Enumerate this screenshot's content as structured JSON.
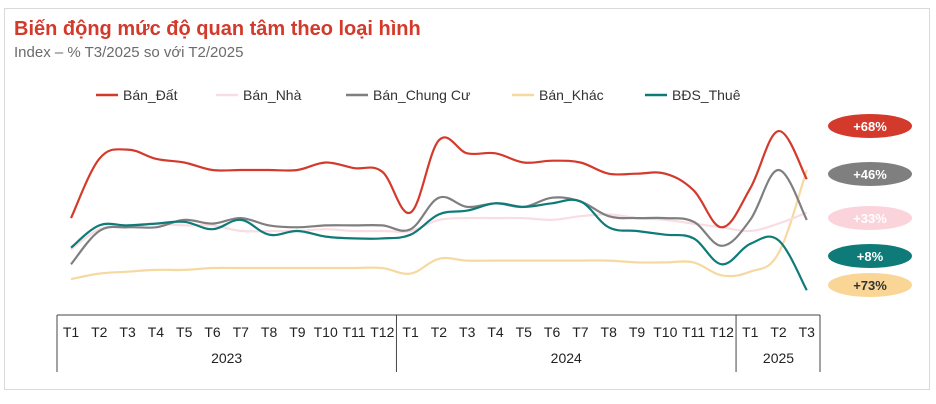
{
  "header": {
    "title": "Biến động mức độ quan tâm theo loại hình",
    "subtitle": "Index – % T3/2025 so với T2/2025"
  },
  "chart_data": {
    "type": "line",
    "categories": [
      "T1",
      "T2",
      "T3",
      "T4",
      "T5",
      "T6",
      "T7",
      "T8",
      "T9",
      "T10",
      "T11",
      "T12",
      "T1",
      "T2",
      "T3",
      "T4",
      "T5",
      "T6",
      "T7",
      "T8",
      "T9",
      "T10",
      "T11",
      "T12",
      "T1",
      "T2",
      "T3"
    ],
    "years": [
      {
        "label": "2023",
        "from": 0,
        "to": 11
      },
      {
        "label": "2024",
        "from": 12,
        "to": 23
      },
      {
        "label": "2025",
        "from": 24,
        "to": 26
      }
    ],
    "legend_position": "top",
    "grid": false,
    "ylim": [
      0,
      100
    ],
    "series": [
      {
        "name": "Bán_Đất",
        "color": "#d33a2c",
        "badge": "+68%",
        "badge_bg": "#d33a2c",
        "badge_fg": "#ffffff",
        "values": [
          47,
          79,
          84,
          79,
          77,
          73,
          73,
          73,
          73,
          77,
          74,
          72,
          50,
          89,
          82,
          82,
          77,
          78,
          77,
          71,
          71,
          71,
          62,
          42,
          63,
          94,
          68
        ]
      },
      {
        "name": "Bán_Nhà",
        "color": "#f9dde3",
        "badge": "+33%",
        "badge_bg": "#fbd3da",
        "badge_fg": "#ffffff",
        "values": [
          30,
          41,
          43,
          44,
          43,
          43,
          40,
          40,
          40,
          41,
          40,
          40,
          40,
          46,
          47,
          47,
          47,
          46,
          48,
          49,
          47,
          46,
          44,
          42,
          40,
          44,
          50
        ]
      },
      {
        "name": "Bán_Chung Cư",
        "color": "#7f7f7f",
        "badge": "+46%",
        "badge_bg": "#7f7f7f",
        "badge_fg": "#ffffff",
        "values": [
          22,
          40,
          42,
          42,
          46,
          44,
          47,
          43,
          42,
          43,
          43,
          43,
          41,
          58,
          53,
          55,
          53,
          58,
          56,
          48,
          47,
          47,
          45,
          32,
          46,
          73,
          46
        ]
      },
      {
        "name": "Bán_Khác",
        "color": "#f6d9a0",
        "badge": "+73%",
        "badge_bg": "#f9d695",
        "badge_fg": "#333333",
        "values": [
          14,
          17,
          18,
          19,
          19,
          20,
          20,
          20,
          20,
          20,
          20,
          20,
          17,
          25,
          24,
          24,
          24,
          24,
          24,
          24,
          23,
          23,
          23,
          16,
          18,
          28,
          73
        ]
      },
      {
        "name": "BĐS_Thuê",
        "color": "#0e7b78",
        "badge": "+8%",
        "badge_bg": "#0e7b78",
        "badge_fg": "#ffffff",
        "values": [
          31,
          43,
          43,
          44,
          45,
          41,
          46,
          38,
          40,
          37,
          36,
          36,
          38,
          49,
          51,
          55,
          53,
          55,
          56,
          42,
          40,
          38,
          36,
          22,
          33,
          35,
          8
        ]
      }
    ]
  }
}
